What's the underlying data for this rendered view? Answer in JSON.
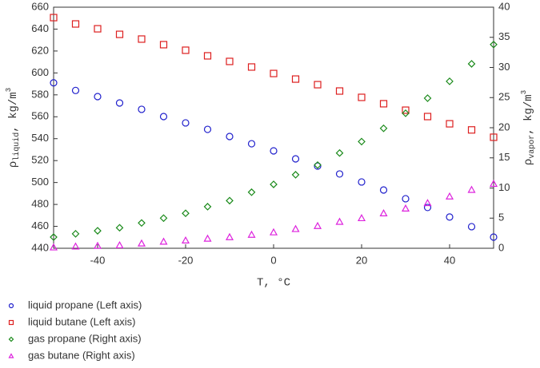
{
  "chart_data": {
    "type": "scatter",
    "x_label": "T, °C",
    "y_label": {
      "symbol": "ρ",
      "subscript": "liquid",
      "unit": ", kg/m",
      "power": "3"
    },
    "y2_label": {
      "symbol": "ρ",
      "subscript": "vapor",
      "unit": ", kg/m",
      "power": "3"
    },
    "x": [
      -50,
      -45,
      -40,
      -35,
      -30,
      -25,
      -20,
      -15,
      -10,
      -5,
      0,
      5,
      10,
      15,
      20,
      25,
      30,
      35,
      40,
      45,
      50
    ],
    "xlim": [
      -50,
      50
    ],
    "xticks": [
      -40,
      -20,
      0,
      20,
      40
    ],
    "ylim": [
      440,
      660
    ],
    "yticks": [
      440,
      460,
      480,
      500,
      520,
      540,
      560,
      580,
      600,
      620,
      640,
      660
    ],
    "y2lim": [
      0,
      40
    ],
    "y2ticks": [
      0,
      5,
      10,
      15,
      20,
      25,
      30,
      35,
      40
    ],
    "grid": false,
    "series": [
      {
        "name": "liquid propane (Left axis)",
        "color": "#1f1fcc",
        "marker": "circle",
        "axis": "y",
        "values": [
          591,
          584,
          578.4,
          572.6,
          566.8,
          560.2,
          554.4,
          548.5,
          542,
          535.4,
          528.9,
          521.6,
          515,
          507.8,
          500.5,
          493.2,
          485.2,
          477.2,
          468.5,
          459.7,
          450.2
        ]
      },
      {
        "name": "liquid butane (Left axis)",
        "color": "#dd1f1f",
        "marker": "square",
        "axis": "y",
        "values": [
          650.5,
          644.7,
          640.3,
          635.2,
          630.9,
          625.8,
          620.7,
          615.6,
          610.5,
          605.4,
          599.5,
          594.4,
          589.3,
          583.5,
          577.7,
          571.9,
          566,
          560.2,
          553.6,
          548,
          541.3
        ]
      },
      {
        "name": "gas propane (Right axis)",
        "color": "#1a8a1a",
        "marker": "diamond",
        "axis": "y2",
        "values": [
          1.85,
          2.4,
          2.9,
          3.4,
          4.2,
          5,
          5.8,
          6.9,
          7.9,
          9.3,
          10.6,
          12.2,
          13.8,
          15.8,
          17.7,
          19.9,
          22.4,
          24.9,
          27.7,
          30.6,
          33.8
        ]
      },
      {
        "name": "gas butane (Right axis)",
        "color": "#dd22dd",
        "marker": "triangle",
        "axis": "y2",
        "values": [
          0.15,
          0.3,
          0.4,
          0.5,
          0.8,
          1.1,
          1.3,
          1.6,
          1.85,
          2.25,
          2.65,
          3.2,
          3.7,
          4.4,
          5,
          5.8,
          6.6,
          7.5,
          8.6,
          9.7,
          10.7
        ]
      }
    ]
  }
}
